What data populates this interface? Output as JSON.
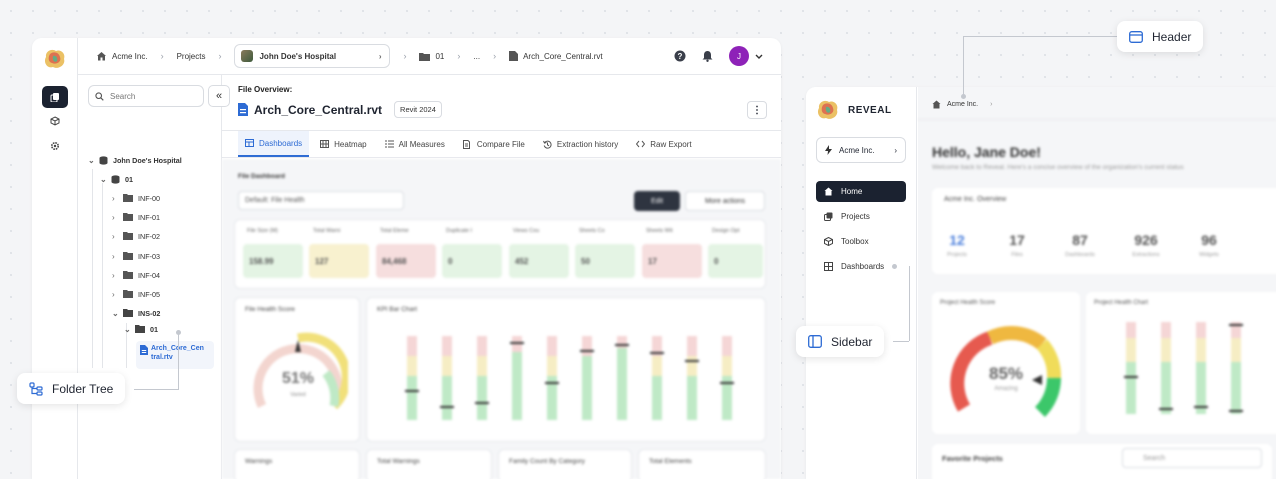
{
  "colors": {
    "accent": "#2d6bd4",
    "avatar": "#8e22b8",
    "dark": "#1b2230"
  },
  "left_app": {
    "breadcrumb": {
      "org": "Acme Inc.",
      "projects": "Projects",
      "hospital": "John Doe's Hospital",
      "folder": "01",
      "ellipsis": "...",
      "file": "Arch_Core_Central.rvt"
    },
    "avatar_initial": "J",
    "tree": {
      "search_placeholder": "Search",
      "collapse_label": "«",
      "root": "John Doe's Hospital",
      "level1": "01",
      "folders": [
        "INF-00",
        "INF-01",
        "INF-02",
        "INF-03",
        "INF-04",
        "INF-05"
      ],
      "open_folder": "INS-02",
      "sub_folder": "01",
      "file_line1": "Arch_Core_Cen",
      "file_line2": "tral.rtv"
    },
    "file_overview": {
      "label": "File Overview:",
      "title": "Arch_Core_Central.rvt",
      "badge": "Revit 2024",
      "more": "⋮"
    },
    "tabs": [
      {
        "label": "Dashboards",
        "icon": "dashboard-icon"
      },
      {
        "label": "Heatmap",
        "icon": "grid-icon"
      },
      {
        "label": "All Measures",
        "icon": "list-icon"
      },
      {
        "label": "Compare File",
        "icon": "compare-icon"
      },
      {
        "label": "Extraction history",
        "icon": "history-icon"
      },
      {
        "label": "Raw Export",
        "icon": "code-icon"
      }
    ],
    "dashboard": {
      "section": "File Dashboard",
      "select": "Default: File Health",
      "edit": "Edit",
      "more_actions": "More actions",
      "metrics": [
        {
          "label": "File Size (M)",
          "value": "158.99",
          "color": "#e4f4e4"
        },
        {
          "label": "Total Warni",
          "value": "127",
          "color": "#f8f1cf"
        },
        {
          "label": "Total Eleme",
          "value": "84,468",
          "color": "#f6dede"
        },
        {
          "label": "Duplicate I",
          "value": "0",
          "color": "#e4f4e4"
        },
        {
          "label": "Views Cou",
          "value": "452",
          "color": "#e4f4e4"
        },
        {
          "label": "Sheets Co",
          "value": "50",
          "color": "#e4f4e4"
        },
        {
          "label": "Sheets Wit",
          "value": "17",
          "color": "#f6dede"
        },
        {
          "label": "Design Opt",
          "value": "0",
          "color": "#e4f4e4"
        }
      ],
      "health_card": {
        "title": "File Health Score",
        "value": "51%",
        "sub": "Varied"
      },
      "kpi_card": {
        "title": "KPI Bar Chart"
      },
      "bottom_cards": [
        "Warnings",
        "Total Warnings",
        "Family Count By Category",
        "Total Elements"
      ]
    }
  },
  "right_app": {
    "brand": "REVEAL",
    "org": "Acme Inc.",
    "nav": [
      "Home",
      "Projects",
      "Toolbox",
      "Dashboards"
    ],
    "breadcrumb": "Acme Inc.",
    "greeting": "Hello, Jane Doe!",
    "subtitle": "Welcome back to Reveal. Here's a concise overview of the organization's current status",
    "overview": "Acme Inc. Overview",
    "stats": [
      {
        "value": "12",
        "label": "Projects"
      },
      {
        "value": "17",
        "label": "Files"
      },
      {
        "value": "87",
        "label": "Dashboards"
      },
      {
        "value": "926",
        "label": "Extractions"
      },
      {
        "value": "96",
        "label": "Widgets"
      }
    ],
    "health_card": {
      "title": "Project Health Score",
      "value": "85%",
      "sub": "Amazing"
    },
    "chart_card": {
      "title": "Project Health Chart"
    },
    "favorites": "Favorite Projects",
    "search": "Search"
  },
  "callouts": {
    "header": "Header",
    "sidebar": "Sidebar",
    "folder_tree": "Folder Tree"
  }
}
